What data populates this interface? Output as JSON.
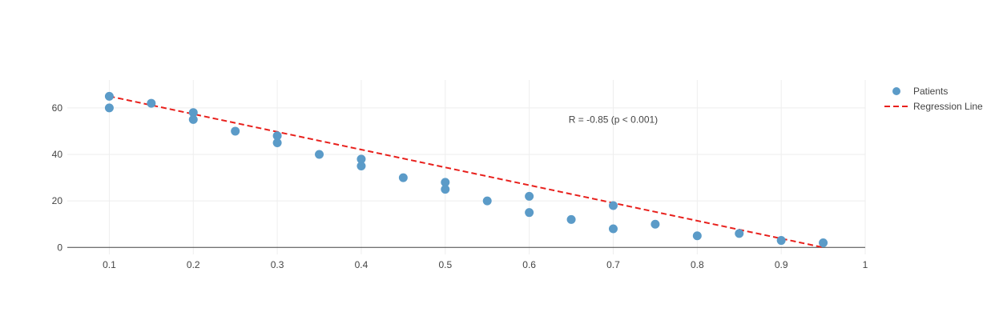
{
  "chart_data": {
    "type": "scatter",
    "title": "",
    "xlabel": "",
    "ylabel": "",
    "xlim": [
      0.05,
      1.0
    ],
    "ylim": [
      -3,
      72
    ],
    "x_ticks": [
      0.1,
      0.2,
      0.3,
      0.4,
      0.5,
      0.6,
      0.7,
      0.8,
      0.9,
      1.0
    ],
    "x_tick_labels": [
      "0.1",
      "0.2",
      "0.3",
      "0.4",
      "0.5",
      "0.6",
      "0.7",
      "0.8",
      "0.9",
      "1"
    ],
    "y_ticks": [
      0,
      20,
      40,
      60
    ],
    "y_tick_labels": [
      "0",
      "20",
      "40",
      "60"
    ],
    "grid": true,
    "legend_position": "top-right",
    "series": [
      {
        "name": "Patients",
        "type": "markers",
        "color": "#5b9bc8",
        "x": [
          0.1,
          0.1,
          0.15,
          0.2,
          0.2,
          0.25,
          0.3,
          0.3,
          0.35,
          0.4,
          0.4,
          0.45,
          0.5,
          0.5,
          0.55,
          0.6,
          0.6,
          0.65,
          0.7,
          0.7,
          0.75,
          0.8,
          0.85,
          0.9,
          0.95
        ],
        "y": [
          65,
          60,
          62,
          58,
          55,
          50,
          48,
          45,
          40,
          38,
          35,
          30,
          28,
          25,
          20,
          22,
          15,
          12,
          18,
          8,
          10,
          5,
          6,
          3,
          2
        ]
      },
      {
        "name": "Regression Line",
        "type": "dashed-line",
        "color": "#e8201c",
        "x": [
          0.1,
          0.95
        ],
        "y": [
          65,
          0
        ]
      }
    ],
    "annotations": [
      {
        "text": "R = -0.85 (p < 0.001)",
        "x": 0.7,
        "y": 55
      }
    ]
  }
}
